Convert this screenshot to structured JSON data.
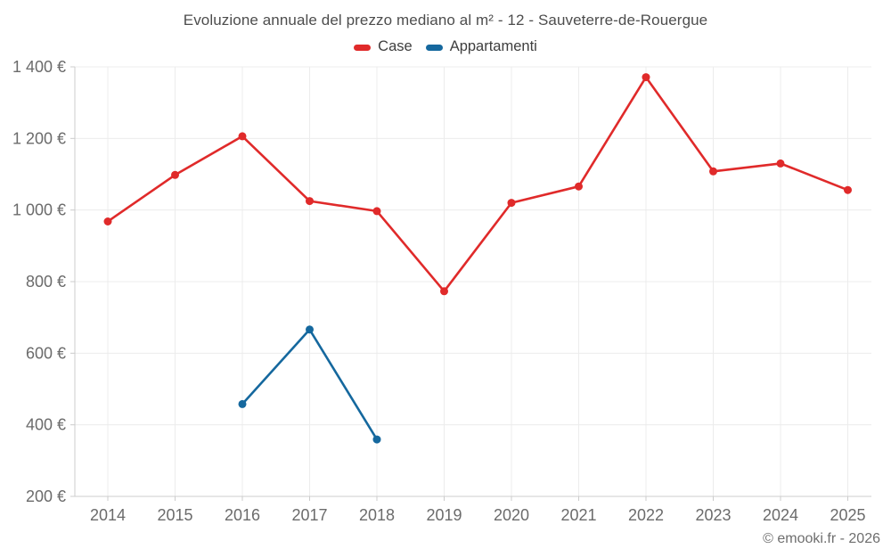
{
  "page": {
    "title": "Evoluzione annuale del prezzo mediano al m² - 12 - Sauveterre-de-Rouergue",
    "footer_credit": "© emooki.fr - 2026"
  },
  "colors": {
    "case_red": "#e02a2a",
    "appartamenti_blue": "#15689e",
    "grid": "#ececec",
    "axis": "#cccccc",
    "tick_text": "#6b6b6b",
    "title_text": "#4d4d4d",
    "legend_text": "#3e3e3e",
    "footer_text": "#6e6e6e",
    "background": "#ffffff"
  },
  "chart_data": {
    "type": "line",
    "title": "Evoluzione annuale del prezzo mediano al m² - 12 - Sauveterre-de-Rouergue",
    "x": [
      2014,
      2015,
      2016,
      2017,
      2018,
      2019,
      2020,
      2021,
      2022,
      2023,
      2024,
      2025
    ],
    "series": [
      {
        "name": "Case",
        "color": "#e02a2a",
        "values": [
          968,
          1098,
          1206,
          1025,
          997,
          773,
          1020,
          1066,
          1371,
          1108,
          1130,
          1056
        ]
      },
      {
        "name": "Appartamenti",
        "color": "#15689e",
        "values": [
          null,
          null,
          458,
          666,
          359,
          null,
          null,
          null,
          null,
          null,
          null,
          null
        ]
      }
    ],
    "ylim": [
      200,
      1400
    ],
    "ytick_values": [
      200,
      400,
      600,
      800,
      1000,
      1200,
      1400
    ],
    "ytick_labels": [
      "200 €",
      "400 €",
      "600 €",
      "800 €",
      "1 000 €",
      "1 200 €",
      "1 400 €"
    ],
    "xtick_labels": [
      "2014",
      "2015",
      "2016",
      "2017",
      "2018",
      "2019",
      "2020",
      "2021",
      "2022",
      "2023",
      "2024",
      "2025"
    ],
    "xlabel": "",
    "ylabel": "",
    "currency": "€",
    "grid": true,
    "legend_position": "top",
    "footer": "© emooki.fr - 2026"
  }
}
